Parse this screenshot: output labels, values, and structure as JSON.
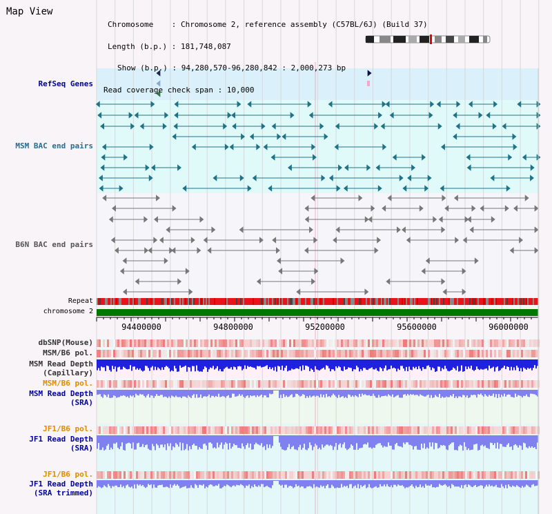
{
  "header": {
    "view_title": "Map View",
    "chromosome_line": "Chromosome    : Chromosome 2, reference assembly (C57BL/6J) (Build 37)",
    "length_line": "Length (b.p.) : 181,748,087",
    "show_line": "Show (b.p.) : 94,280,570-96,280,842 : 2,000,273 bp",
    "coverage_line": "Read coverage check span : 10,000"
  },
  "tracks": {
    "refseq": "RefSeq Genes",
    "msm_bac": "MSM BAC end pairs",
    "b6n_bac": "B6N BAC end pairs",
    "repeat": "Repeat",
    "chromosome": "chromosome 2",
    "dbsnp": "dbSNP(Mouse)",
    "msm_b6_pol_1": "MSM/B6 pol.",
    "msm_read_depth_cap_1": "MSM Read Depth",
    "msm_read_depth_cap_2": "(Capillary)",
    "msm_b6_pol_2": "MSM/B6 pol.",
    "msm_read_depth_sra_1": "MSM Read Depth",
    "msm_read_depth_sra_2": "(SRA)",
    "jf1_b6_pol_1": "JF1/B6 pol.",
    "jf1_read_depth_sra_1": "JF1 Read Depth",
    "jf1_read_depth_sra_2": "(SRA)",
    "jf1_b6_pol_2": "JF1/B6 pol.",
    "jf1_read_depth_trim_1": "JF1 Read Depth",
    "jf1_read_depth_trim_2": "(SRA trimmed)"
  },
  "axis_positions": [
    "94400000",
    "94800000",
    "95200000",
    "95600000",
    "96000000"
  ],
  "colors": {
    "refseq_bg": "#daf0fa",
    "bac_msm_bg": "#e0fafa",
    "bac_b6n_bg": "#f6f6fa",
    "teal_feature": "#1f7386",
    "gray_feature": "#777777",
    "repeat_red": "#e8141a",
    "chromosome_green": "#007800",
    "depth_blue": "#2020e0",
    "depth_light_blue": "#8080f0",
    "pol_red": "#e83a3a",
    "current_marker": "#e5007a"
  }
}
